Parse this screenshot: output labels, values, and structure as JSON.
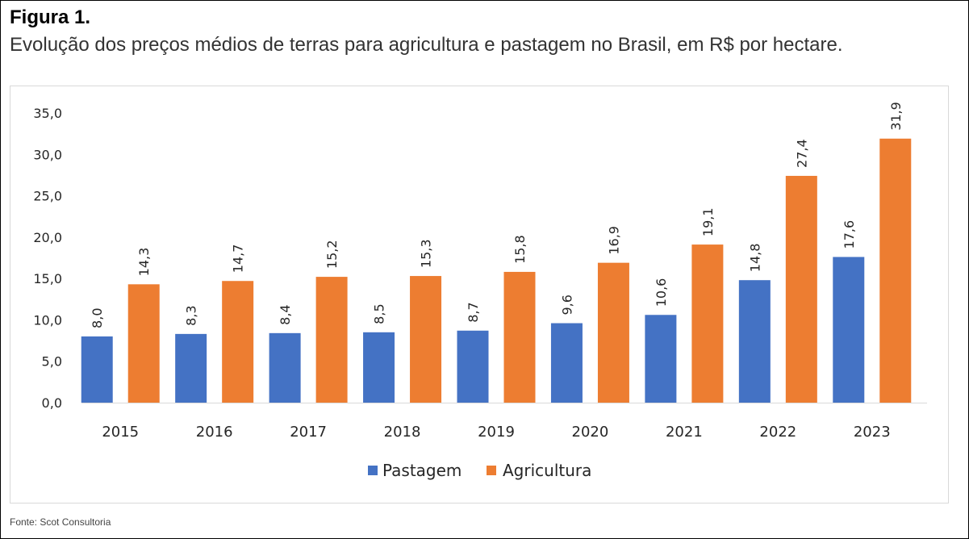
{
  "figure": {
    "title": "Figura 1.",
    "subtitle": "Evolução dos preços médios de terras para agricultura e pastagem no Brasil, em R$ por hectare.",
    "source": "Fonte: Scot Consultoria"
  },
  "chart_data": {
    "type": "bar",
    "categories": [
      "2015",
      "2016",
      "2017",
      "2018",
      "2019",
      "2020",
      "2021",
      "2022",
      "2023"
    ],
    "series": [
      {
        "name": "Pastagem",
        "color": "#4472c4",
        "values": [
          8.0,
          8.3,
          8.4,
          8.5,
          8.7,
          9.6,
          10.6,
          14.8,
          17.6
        ]
      },
      {
        "name": "Agricultura",
        "color": "#ed7d31",
        "values": [
          14.3,
          14.7,
          15.2,
          15.3,
          15.8,
          16.9,
          19.1,
          27.4,
          31.9
        ]
      }
    ],
    "data_labels": [
      [
        "8,0",
        "8,3",
        "8,4",
        "8,5",
        "8,7",
        "9,6",
        "10,6",
        "14,8",
        "17,6"
      ],
      [
        "14,3",
        "14,7",
        "15,2",
        "15,3",
        "15,8",
        "16,9",
        "19,1",
        "27,4",
        "31,9"
      ]
    ],
    "y_ticks": [
      0,
      5,
      10,
      15,
      20,
      25,
      30,
      35
    ],
    "y_tick_labels": [
      "0,0",
      "5,0",
      "10,0",
      "15,0",
      "20,0",
      "25,0",
      "30,0",
      "35,0"
    ],
    "ylim": [
      0,
      35
    ],
    "grid": false,
    "legend_position": "bottom",
    "title": "",
    "xlabel": "",
    "ylabel": ""
  }
}
